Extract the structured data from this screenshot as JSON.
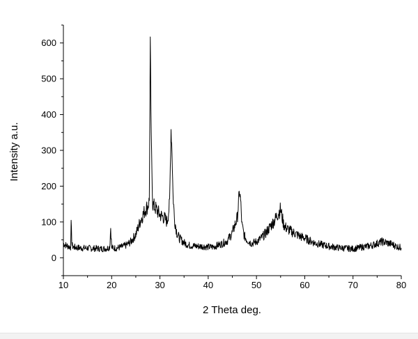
{
  "chart_data": {
    "type": "line",
    "xlabel": "2 Theta deg.",
    "ylabel": "Intensity a.u.",
    "xlim": [
      10,
      80
    ],
    "ylim": [
      -50,
      650
    ],
    "x_ticks": [
      10,
      20,
      30,
      40,
      50,
      60,
      70,
      80
    ],
    "y_ticks": [
      0,
      100,
      200,
      300,
      400,
      500,
      600
    ],
    "grid": false,
    "line_color": "#000000",
    "series": [
      {
        "x": [
          10,
          10.5,
          11,
          11.5,
          11.6,
          11.8,
          12,
          13,
          14,
          15,
          16,
          17,
          18,
          19,
          19.6,
          19.8,
          20,
          20.5,
          21,
          22,
          23,
          24,
          25,
          25.5,
          26,
          26.5,
          27,
          27.5,
          27.8,
          28,
          28.2,
          28.5,
          29,
          29.5,
          30,
          30.5,
          31,
          31.5,
          32,
          32.3,
          32.5,
          32.7,
          33,
          33.5,
          34,
          35,
          36,
          37,
          38,
          39,
          40,
          41,
          42,
          43,
          44,
          45,
          46,
          46.5,
          46.7,
          47,
          47.5,
          48,
          49,
          50,
          51,
          52,
          53,
          54,
          54.5,
          55,
          55.3,
          55.6,
          56,
          57,
          58,
          59,
          60,
          61,
          62,
          63,
          64,
          65,
          66,
          67,
          68,
          69,
          70,
          71,
          72,
          73,
          74,
          75,
          76,
          77,
          78,
          79,
          80
        ],
        "y": [
          40,
          35,
          32,
          30,
          90,
          35,
          30,
          28,
          27,
          27,
          26,
          26,
          25,
          26,
          30,
          85,
          28,
          27,
          27,
          30,
          35,
          45,
          65,
          85,
          105,
          120,
          135,
          145,
          160,
          600,
          330,
          150,
          140,
          130,
          120,
          115,
          110,
          100,
          150,
          360,
          300,
          180,
          110,
          70,
          55,
          42,
          35,
          33,
          32,
          32,
          30,
          30,
          35,
          40,
          48,
          70,
          110,
          185,
          160,
          90,
          60,
          50,
          40,
          45,
          55,
          70,
          90,
          110,
          125,
          135,
          115,
          95,
          85,
          75,
          68,
          60,
          55,
          48,
          42,
          38,
          35,
          32,
          30,
          28,
          27,
          26,
          25,
          27,
          30,
          32,
          35,
          40,
          45,
          42,
          38,
          32,
          28
        ]
      }
    ]
  }
}
